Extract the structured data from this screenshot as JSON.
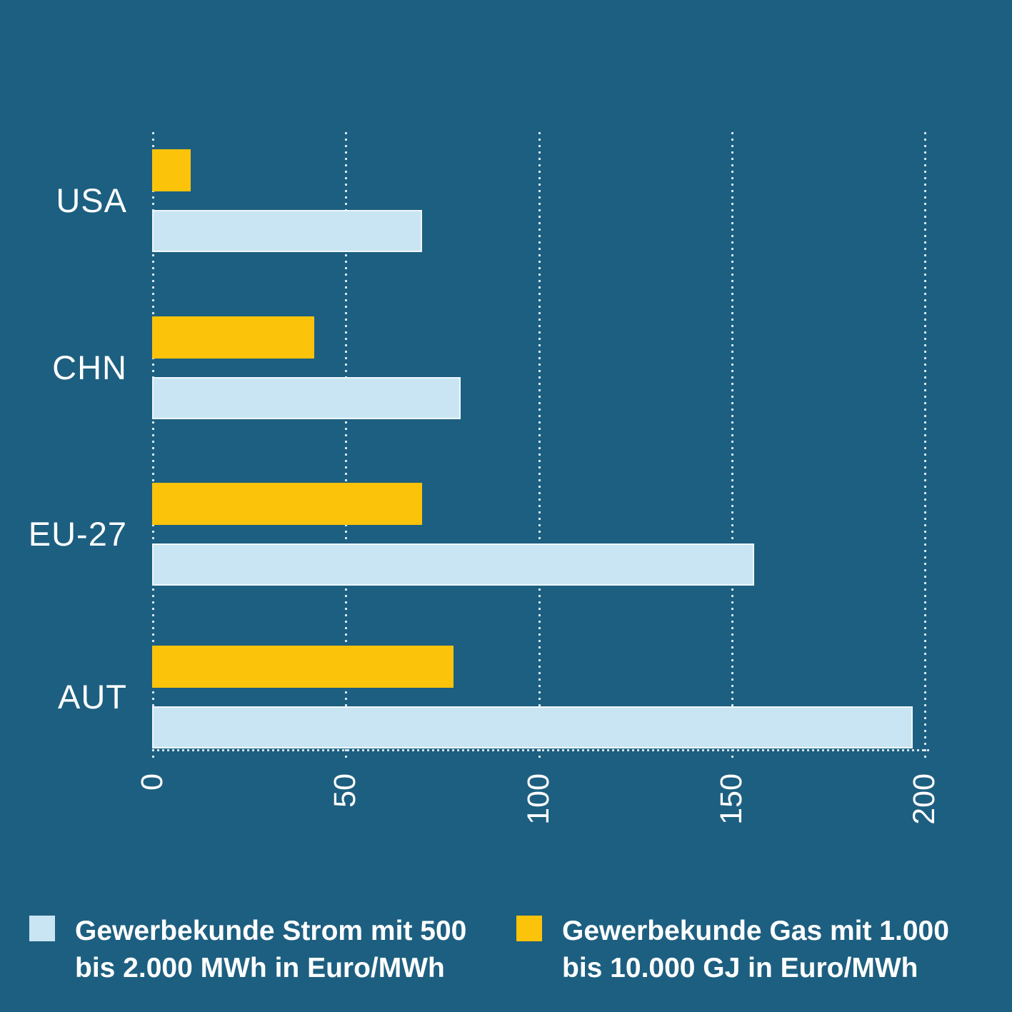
{
  "chart_data": {
    "type": "bar",
    "orientation": "horizontal",
    "title": "",
    "xlabel": "",
    "ylabel": "",
    "categories": [
      "USA",
      "CHN",
      "EU-27",
      "AUT"
    ],
    "series": [
      {
        "id": "gas",
        "name": "Gewerbekunde Gas mit 1.000 bis 10.000 GJ in Euro/MWh",
        "values": [
          10,
          42,
          70,
          78
        ]
      },
      {
        "id": "strom",
        "name": "Gewerbekunde Strom mit 500 bis 2.000 MWh in Euro/MWh",
        "values": [
          70,
          80,
          156,
          197
        ]
      }
    ],
    "group_row_order": [
      "gas",
      "strom"
    ],
    "x_ticks": [
      0,
      50,
      100,
      150,
      200
    ],
    "xlim": [
      0,
      200
    ],
    "grid": "vertical-dotted",
    "legend_position": "bottom"
  },
  "legend": {
    "items": [
      {
        "series": "strom",
        "line1": "Gewerbekunde Strom mit 500",
        "line2": "bis 2.000 MWh in Euro/MWh"
      },
      {
        "series": "gas",
        "line1": "Gewerbekunde Gas mit 1.000",
        "line2": "bis 10.000 GJ in Euro/MWh"
      }
    ]
  },
  "colors": {
    "background": "#1d5f80",
    "strom": "#c9e5f3",
    "strom_border": "#eef7fc",
    "gas": "#fcc30b",
    "text": "#ffffff",
    "grid": "#dfeef6"
  }
}
